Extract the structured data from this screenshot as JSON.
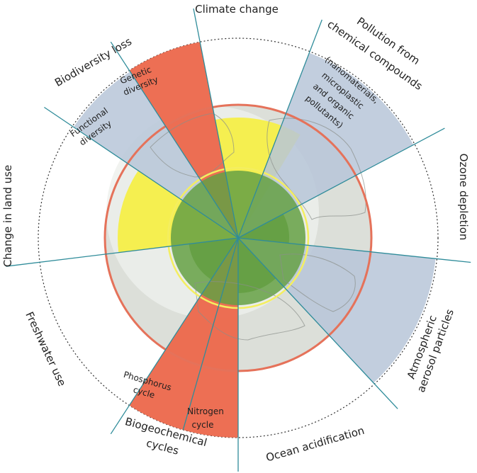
{
  "colors": {
    "safe_zone": "#65a044",
    "increasing_risk": "#f5ef48",
    "high_risk": "#ec674b",
    "not_quantified": "#b7c5d8",
    "boundary_ring": "#e5725a",
    "safe_ring": "#f4ee60",
    "axis_lines": "#2f8c9a",
    "globe": "#dcdfd9"
  },
  "labels": {
    "climate": "Climate change",
    "pollution": [
      "Pollution from",
      "chemical compounds"
    ],
    "pollution_sub": [
      "(nanomaterials,",
      "microplastic",
      "and organic",
      "pollutants)"
    ],
    "ozone": "Ozone depletion",
    "aerosol": [
      "Atmospheric",
      "aerosol particles"
    ],
    "ocean": "Ocean acidification",
    "biogeo": [
      "Biogeochemical",
      "cycles"
    ],
    "nitrogen": [
      "Nitrogen",
      "cycle"
    ],
    "phosphorus": [
      "Phosphorus",
      "cycle"
    ],
    "freshwater": "Freshwater use",
    "landuse": "Change in land use",
    "biodiversity": "Biodiversity loss",
    "functional": [
      "Functional",
      "diversity"
    ],
    "genetic": [
      "Genetic",
      "diversity"
    ]
  },
  "wedges": [
    {
      "id": "climate",
      "status": "increasing_risk"
    },
    {
      "id": "pollution",
      "status": "not_quantified"
    },
    {
      "id": "ozone",
      "status": "safe_zone"
    },
    {
      "id": "aerosol",
      "status": "not_quantified"
    },
    {
      "id": "ocean",
      "status": "safe_zone"
    },
    {
      "id": "nitrogen",
      "status": "high_risk"
    },
    {
      "id": "phosphorus",
      "status": "high_risk"
    },
    {
      "id": "freshwater",
      "status": "safe_zone"
    },
    {
      "id": "landuse",
      "status": "increasing_risk"
    },
    {
      "id": "functional",
      "status": "not_quantified"
    },
    {
      "id": "genetic",
      "status": "high_risk"
    }
  ]
}
